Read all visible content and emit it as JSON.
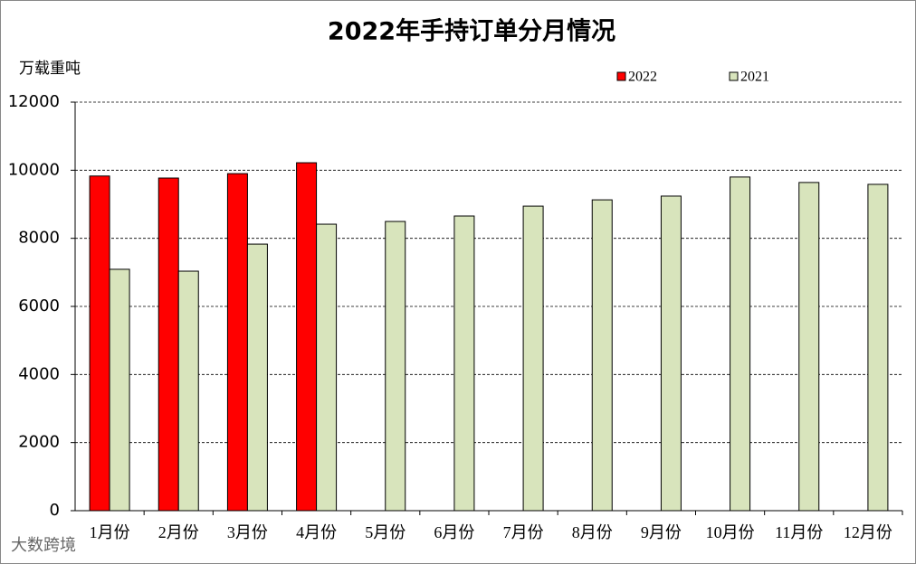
{
  "chart_data": {
    "type": "bar",
    "title": "2022年手持订单分月情况",
    "y_label": "万载重吨",
    "categories": [
      "1月份",
      "2月份",
      "3月份",
      "4月份",
      "5月份",
      "6月份",
      "7月份",
      "8月份",
      "9月份",
      "10月份",
      "11月份",
      "12月份"
    ],
    "series": [
      {
        "name": "2022",
        "color": "#ff0000",
        "values": [
          9830,
          9770,
          9900,
          10220,
          null,
          null,
          null,
          null,
          null,
          null,
          null,
          null
        ]
      },
      {
        "name": "2021",
        "color": "#d8e4bc",
        "values": [
          7090,
          7035,
          7830,
          8415,
          8495,
          8655,
          8945,
          9130,
          9240,
          9800,
          9640,
          9585
        ]
      }
    ],
    "ylim": [
      0,
      12000
    ],
    "yticks": [
      0,
      2000,
      4000,
      6000,
      8000,
      10000,
      12000
    ],
    "grid": true,
    "watermark": "大数跨境"
  }
}
